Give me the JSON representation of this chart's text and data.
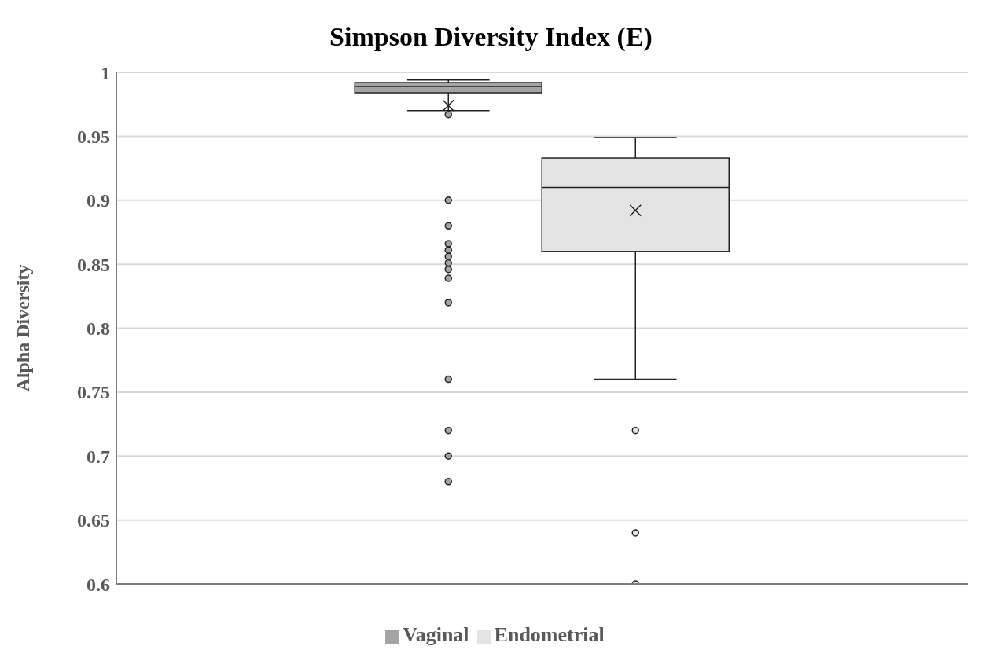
{
  "chart_data": {
    "type": "box",
    "title": "Simpson Diversity Index (E)",
    "ylabel": "Alpha Diversity",
    "categories": [
      null
    ],
    "series": [
      {
        "name": "Vaginal",
        "color": "#a6a3a3",
        "boxes": [
          {
            "low": 0.97,
            "q1": 0.984,
            "median": 0.989,
            "q3": 0.992,
            "high": 0.994,
            "mean": 0.974,
            "outliers": [
              0.967,
              0.9,
              0.88,
              0.866,
              0.861,
              0.856,
              0.851,
              0.846,
              0.839,
              0.82,
              0.76,
              0.72,
              0.7,
              0.68
            ]
          }
        ]
      },
      {
        "name": "Endometrial",
        "color": "#e4e4e4",
        "boxes": [
          {
            "low": 0.76,
            "q1": 0.86,
            "median": 0.91,
            "q3": 0.933,
            "high": 0.949,
            "mean": 0.892,
            "outliers": [
              0.72,
              0.64,
              0.6
            ]
          }
        ]
      }
    ],
    "ylim": [
      0.6,
      1
    ],
    "yticks": [
      0.6,
      0.65,
      0.7,
      0.75,
      0.8,
      0.85,
      0.9,
      0.95,
      1
    ],
    "grid": "y",
    "legend": "bottom",
    "tick_labels": "y"
  }
}
